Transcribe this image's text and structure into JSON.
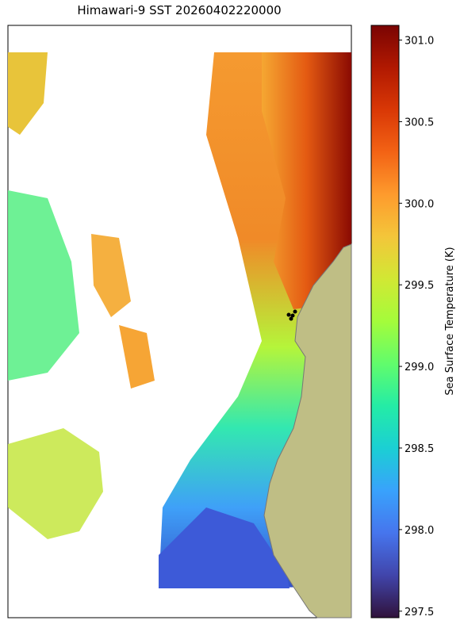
{
  "chart_data": {
    "type": "raster_map",
    "title": "Himawari-9 SST 20260402220000",
    "colorbar": {
      "label": "Sea Surface Temperature (K)",
      "lim": [
        297.46,
        301.09
      ],
      "ticks": [
        297.5,
        {
          "value": 298,
          "label": "298.0"
        },
        298.5,
        {
          "value": 299,
          "label": "299.0"
        },
        299.5,
        {
          "value": 300,
          "label": "300.0"
        },
        300.5,
        {
          "value": 301,
          "label": "301.0"
        }
      ],
      "colors": [
        "#30123b",
        "#4145ab",
        "#4675ed",
        "#39a2fc",
        "#1bcfd4",
        "#24eca6",
        "#61fc6c",
        "#a4fc3b",
        "#d1e834",
        "#f3c63a",
        "#fe9b2d",
        "#f36315",
        "#d93806",
        "#b11901",
        "#7a0403"
      ]
    }
  }
}
